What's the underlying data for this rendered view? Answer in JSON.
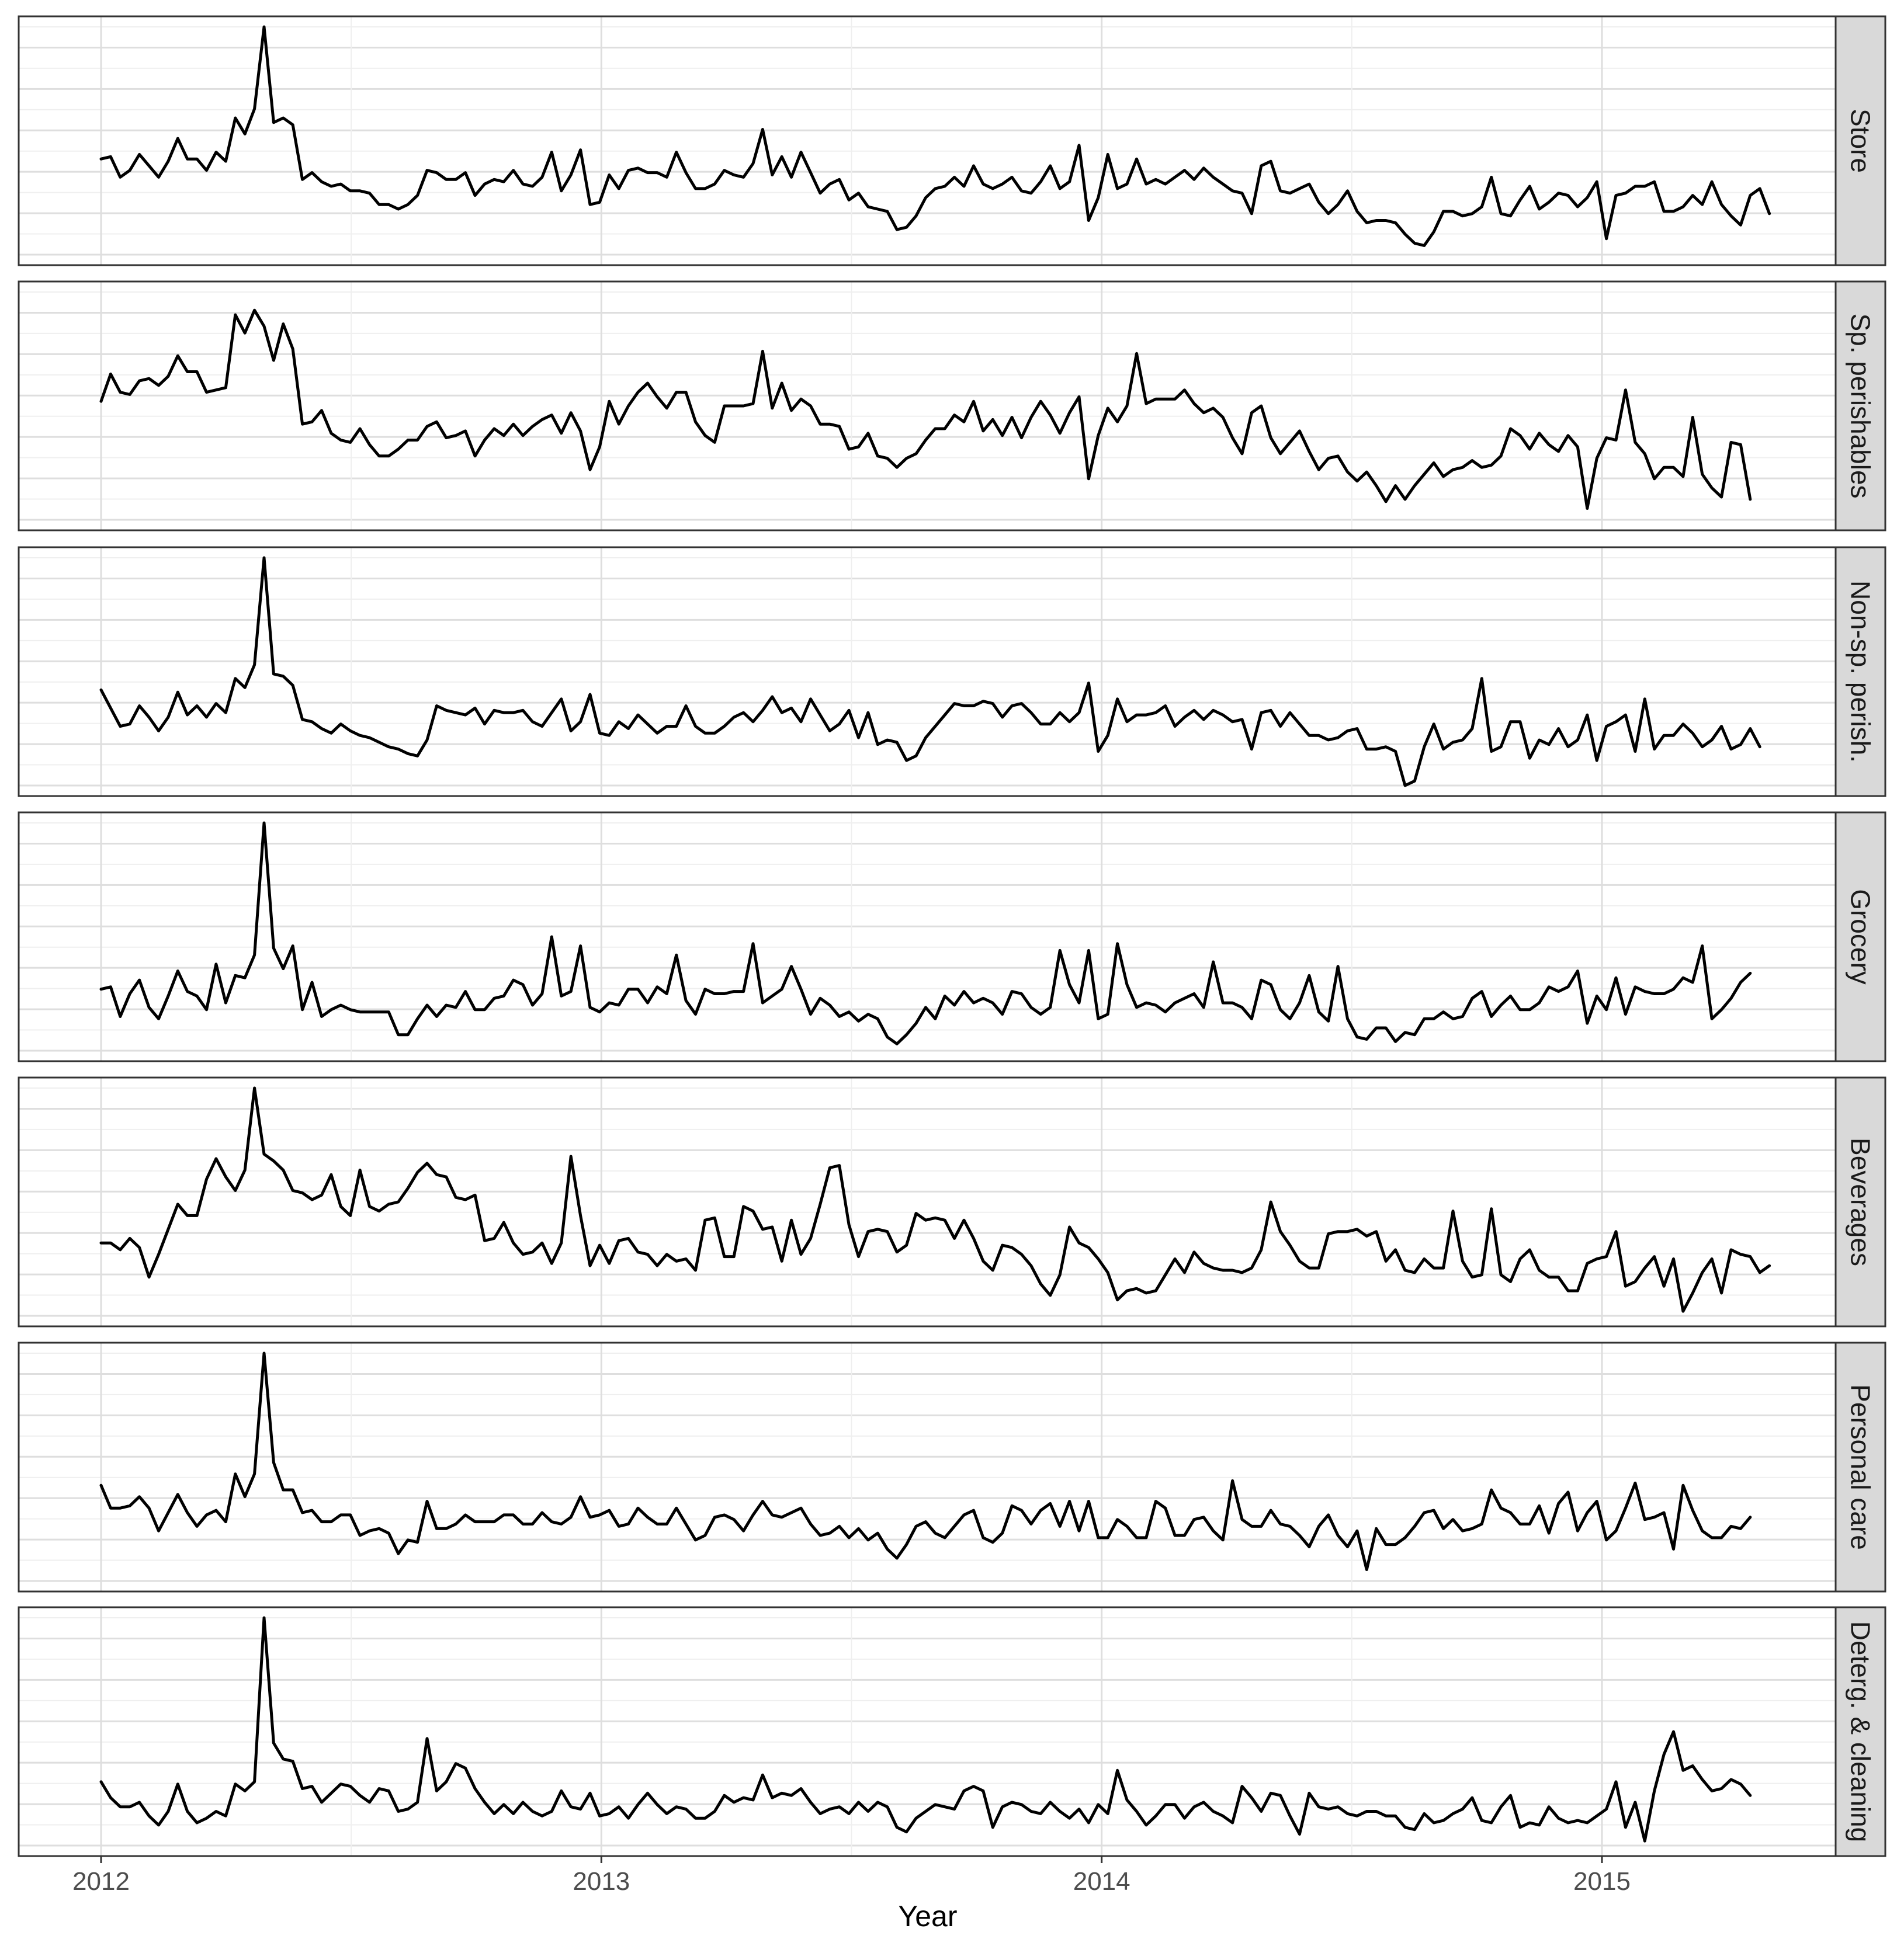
{
  "chart_data": {
    "type": "line",
    "title": "",
    "xlabel": "Year",
    "ylabel": "",
    "x_ticks": [
      "2012",
      "2013",
      "2014",
      "2015"
    ],
    "x_tick_values": [
      2012,
      2013,
      2014,
      2015
    ],
    "xlim": [
      2011.92,
      2015.49
    ],
    "x_start": 2012.0,
    "x_step_weeks": 1,
    "facets": "stacked vertically, one series per panel, independent y scales, y axis unlabeled",
    "grid": true,
    "line_color": "#000000",
    "strip_fill": "#d9d9d9",
    "series": [
      {
        "name": "Store",
        "ylim": [
          0,
          100
        ],
        "values": [
          42,
          43,
          34,
          37,
          44,
          39,
          34,
          41,
          51,
          42,
          42,
          37,
          45,
          41,
          60,
          53,
          64,
          100,
          58,
          60,
          57,
          33,
          36,
          32,
          30,
          31,
          28,
          28,
          27,
          22,
          22,
          20,
          22,
          26,
          37,
          36,
          33,
          33,
          36,
          26,
          31,
          33,
          32,
          37,
          31,
          30,
          34,
          45,
          28,
          35,
          46,
          22,
          23,
          35,
          29,
          37,
          38,
          36,
          36,
          34,
          45,
          36,
          29,
          29,
          31,
          37,
          35,
          34,
          40,
          55,
          35,
          43,
          34,
          45,
          36,
          27,
          31,
          33,
          24,
          27,
          21,
          20,
          19,
          11,
          12,
          17,
          25,
          29,
          30,
          34,
          30,
          39,
          31,
          29,
          31,
          34,
          28,
          27,
          32,
          39,
          29,
          32,
          48,
          15,
          25,
          44,
          29,
          31,
          42,
          31,
          33,
          31,
          34,
          37,
          33,
          38,
          34,
          31,
          28,
          27,
          18,
          39,
          41,
          28,
          27,
          29,
          31,
          23,
          18,
          22,
          28,
          19,
          14,
          15,
          15,
          14,
          9,
          5,
          4,
          10,
          19,
          19,
          17,
          18,
          21,
          34,
          18,
          17,
          24,
          30,
          20,
          23,
          27,
          26,
          21,
          25,
          32,
          7,
          26,
          27,
          30,
          30,
          32,
          19,
          19,
          21,
          26,
          22,
          32,
          22,
          17,
          13,
          26,
          29,
          18
        ],
        "strip_label": "Store"
      },
      {
        "name": "Sp. perishables",
        "ylim": [
          0,
          100
        ],
        "values": [
          52,
          64,
          56,
          55,
          61,
          62,
          59,
          63,
          72,
          65,
          65,
          56,
          57,
          58,
          90,
          82,
          92,
          85,
          70,
          86,
          75,
          42,
          43,
          48,
          38,
          35,
          34,
          40,
          33,
          28,
          28,
          31,
          35,
          35,
          41,
          43,
          36,
          37,
          39,
          28,
          35,
          40,
          37,
          42,
          37,
          41,
          44,
          46,
          38,
          47,
          39,
          22,
          32,
          52,
          42,
          50,
          56,
          60,
          54,
          49,
          56,
          56,
          43,
          37,
          34,
          50,
          50,
          50,
          51,
          74,
          49,
          60,
          48,
          53,
          50,
          42,
          42,
          41,
          31,
          32,
          38,
          28,
          27,
          23,
          27,
          29,
          35,
          40,
          40,
          46,
          43,
          52,
          39,
          44,
          37,
          45,
          36,
          45,
          52,
          46,
          38,
          47,
          54,
          18,
          37,
          49,
          43,
          50,
          73,
          51,
          53,
          53,
          53,
          57,
          51,
          47,
          49,
          45,
          36,
          29,
          47,
          50,
          36,
          29,
          34,
          39,
          30,
          22,
          27,
          28,
          21,
          17,
          21,
          15,
          8,
          15,
          9,
          15,
          20,
          25,
          19,
          22,
          23,
          26,
          23,
          24,
          28,
          40,
          37,
          31,
          38,
          33,
          30,
          37,
          32,
          5,
          27,
          36,
          35,
          57,
          34,
          29,
          18,
          23,
          23,
          19,
          45,
          20,
          14,
          10,
          34,
          33,
          9
        ],
        "strip_label": "Sp. perishables"
      },
      {
        "name": "Non-sp. perish.",
        "ylim": [
          0,
          100
        ],
        "values": [
          42,
          34,
          26,
          27,
          35,
          30,
          24,
          30,
          41,
          31,
          35,
          30,
          36,
          32,
          47,
          43,
          53,
          100,
          49,
          48,
          44,
          29,
          28,
          25,
          23,
          27,
          24,
          22,
          21,
          19,
          17,
          16,
          14,
          13,
          20,
          35,
          33,
          32,
          31,
          34,
          27,
          33,
          32,
          32,
          33,
          28,
          26,
          32,
          38,
          24,
          28,
          40,
          23,
          22,
          28,
          25,
          31,
          27,
          23,
          26,
          26,
          35,
          26,
          23,
          23,
          26,
          30,
          32,
          28,
          33,
          39,
          32,
          34,
          28,
          38,
          31,
          24,
          27,
          33,
          21,
          32,
          18,
          20,
          19,
          11,
          13,
          21,
          26,
          31,
          36,
          35,
          35,
          37,
          36,
          30,
          35,
          36,
          32,
          27,
          27,
          32,
          28,
          32,
          45,
          15,
          22,
          38,
          28,
          31,
          31,
          32,
          35,
          26,
          30,
          33,
          29,
          33,
          31,
          28,
          29,
          16,
          32,
          33,
          26,
          32,
          27,
          22,
          22,
          20,
          21,
          24,
          25,
          16,
          16,
          17,
          15,
          0,
          2,
          17,
          27,
          16,
          19,
          20,
          25,
          47,
          15,
          17,
          28,
          28,
          12,
          20,
          18,
          25,
          17,
          20,
          31,
          11,
          26,
          28,
          31,
          15,
          38,
          16,
          22,
          22,
          27,
          23,
          17,
          20,
          26,
          16,
          18,
          25,
          17
        ],
        "strip_label": "Non-sp. perish."
      },
      {
        "name": "Grocery",
        "ylim": [
          0,
          100
        ],
        "values": [
          27,
          28,
          15,
          25,
          31,
          19,
          14,
          24,
          35,
          26,
          24,
          18,
          38,
          21,
          33,
          32,
          42,
          100,
          45,
          36,
          46,
          18,
          30,
          15,
          18,
          20,
          18,
          17,
          17,
          17,
          17,
          7,
          7,
          14,
          20,
          15,
          20,
          19,
          26,
          18,
          18,
          23,
          24,
          31,
          29,
          20,
          25,
          50,
          24,
          26,
          46,
          19,
          17,
          21,
          20,
          27,
          27,
          21,
          28,
          25,
          42,
          22,
          16,
          27,
          25,
          25,
          26,
          26,
          47,
          21,
          24,
          27,
          37,
          27,
          16,
          23,
          20,
          15,
          17,
          13,
          16,
          14,
          6,
          3,
          7,
          12,
          19,
          14,
          24,
          20,
          26,
          21,
          23,
          21,
          16,
          26,
          25,
          19,
          16,
          19,
          44,
          29,
          21,
          44,
          14,
          16,
          47,
          29,
          19,
          21,
          20,
          17,
          21,
          23,
          25,
          19,
          39,
          21,
          21,
          19,
          14,
          31,
          29,
          18,
          14,
          21,
          33,
          17,
          13,
          37,
          14,
          6,
          5,
          10,
          10,
          4,
          8,
          7,
          14,
          14,
          17,
          14,
          15,
          23,
          26,
          15,
          20,
          24,
          18,
          18,
          21,
          28,
          26,
          28,
          35,
          12,
          24,
          18,
          32,
          16,
          28,
          26,
          25,
          25,
          27,
          32,
          30,
          46,
          14,
          18,
          23,
          30,
          34
        ],
        "strip_label": "Grocery"
      },
      {
        "name": "Beverages",
        "ylim": [
          0,
          100
        ],
        "values": [
          32,
          32,
          29,
          34,
          30,
          17,
          27,
          38,
          49,
          44,
          44,
          60,
          69,
          61,
          55,
          64,
          100,
          71,
          68,
          64,
          55,
          54,
          51,
          53,
          62,
          48,
          44,
          64,
          48,
          46,
          49,
          50,
          56,
          63,
          67,
          62,
          61,
          52,
          51,
          53,
          33,
          34,
          41,
          32,
          27,
          28,
          32,
          23,
          32,
          70,
          44,
          22,
          31,
          23,
          33,
          34,
          28,
          27,
          22,
          27,
          24,
          25,
          20,
          42,
          43,
          26,
          26,
          48,
          46,
          38,
          39,
          24,
          42,
          27,
          34,
          49,
          65,
          66,
          40,
          26,
          37,
          38,
          37,
          28,
          31,
          45,
          42,
          43,
          42,
          34,
          42,
          34,
          24,
          20,
          31,
          30,
          27,
          22,
          14,
          9,
          18,
          39,
          32,
          30,
          25,
          19,
          7,
          11,
          12,
          10,
          11,
          18,
          25,
          19,
          28,
          23,
          21,
          20,
          20,
          19,
          21,
          29,
          50,
          37,
          31,
          24,
          21,
          21,
          36,
          37,
          37,
          38,
          35,
          37,
          24,
          29,
          20,
          19,
          25,
          21,
          21,
          46,
          24,
          17,
          18,
          47,
          18,
          15,
          25,
          29,
          20,
          17,
          17,
          11,
          11,
          23,
          25,
          26,
          37,
          13,
          15,
          21,
          26,
          13,
          25,
          2,
          10,
          19,
          25,
          10,
          29,
          27,
          26,
          19,
          22
        ],
        "strip_label": "Beverages"
      },
      {
        "name": "Personal care",
        "ylim": [
          0,
          100
        ],
        "values": [
          42,
          32,
          32,
          33,
          37,
          32,
          22,
          30,
          38,
          30,
          24,
          29,
          31,
          26,
          47,
          37,
          47,
          100,
          52,
          40,
          40,
          30,
          31,
          26,
          26,
          29,
          29,
          20,
          22,
          23,
          21,
          12,
          18,
          17,
          35,
          23,
          23,
          25,
          29,
          26,
          26,
          26,
          29,
          29,
          25,
          25,
          30,
          26,
          25,
          28,
          37,
          28,
          29,
          31,
          24,
          25,
          32,
          28,
          25,
          25,
          32,
          25,
          18,
          20,
          28,
          29,
          27,
          22,
          29,
          35,
          29,
          28,
          30,
          32,
          25,
          20,
          21,
          24,
          19,
          23,
          18,
          21,
          14,
          10,
          16,
          24,
          26,
          21,
          19,
          24,
          29,
          31,
          19,
          17,
          21,
          33,
          31,
          25,
          31,
          34,
          24,
          35,
          22,
          35,
          19,
          19,
          27,
          24,
          19,
          19,
          35,
          32,
          20,
          20,
          27,
          28,
          22,
          18,
          44,
          27,
          24,
          24,
          31,
          25,
          24,
          20,
          15,
          24,
          29,
          20,
          15,
          22,
          5,
          23,
          16,
          16,
          19,
          24,
          30,
          31,
          23,
          27,
          22,
          23,
          25,
          40,
          32,
          30,
          25,
          25,
          33,
          21,
          34,
          39,
          22,
          30,
          35,
          18,
          22,
          32,
          43,
          27,
          28,
          30,
          14,
          42,
          31,
          22,
          19,
          19,
          24,
          23,
          28
        ],
        "strip_label": "Personal care"
      },
      {
        "name": "Deterg. & cleaning",
        "ylim": [
          0,
          100
        ],
        "values": [
          28,
          21,
          17,
          17,
          19,
          13,
          9,
          15,
          27,
          15,
          10,
          12,
          15,
          13,
          27,
          24,
          28,
          100,
          45,
          38,
          37,
          25,
          26,
          19,
          23,
          27,
          26,
          22,
          19,
          25,
          24,
          15,
          16,
          19,
          47,
          24,
          28,
          36,
          34,
          25,
          19,
          14,
          18,
          14,
          19,
          15,
          13,
          15,
          24,
          17,
          16,
          23,
          13,
          14,
          17,
          12,
          18,
          23,
          18,
          14,
          17,
          16,
          12,
          12,
          15,
          22,
          19,
          21,
          20,
          31,
          21,
          23,
          22,
          25,
          19,
          14,
          16,
          17,
          14,
          19,
          15,
          19,
          17,
          8,
          6,
          12,
          15,
          18,
          17,
          16,
          24,
          26,
          24,
          8,
          17,
          19,
          18,
          15,
          14,
          19,
          15,
          12,
          16,
          10,
          18,
          14,
          33,
          20,
          15,
          9,
          13,
          18,
          18,
          12,
          17,
          19,
          15,
          13,
          10,
          26,
          21,
          15,
          23,
          22,
          13,
          5,
          23,
          17,
          16,
          17,
          14,
          13,
          15,
          15,
          13,
          13,
          8,
          7,
          14,
          10,
          11,
          14,
          16,
          21,
          11,
          10,
          17,
          22,
          8,
          10,
          9,
          17,
          12,
          10,
          11,
          10,
          13,
          16,
          28,
          8,
          19,
          2,
          24,
          40,
          50,
          33,
          35,
          29,
          24,
          25,
          29,
          27,
          22
        ]
      }
    ]
  }
}
